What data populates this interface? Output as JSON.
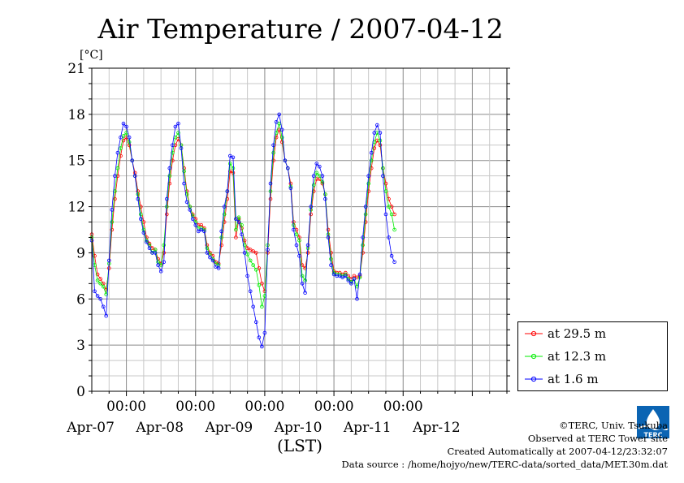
{
  "chart_data": {
    "type": "line",
    "title": "Air Temperature / 2007-04-12",
    "unit_label": "[°C]",
    "xlabel": "(LST)",
    "ylim": [
      0,
      21
    ],
    "yticks": [
      0,
      3,
      6,
      9,
      12,
      15,
      18,
      21
    ],
    "x_range_hours": [
      -12,
      132
    ],
    "x_units": "hours since 2007-04-07 00:00 LST",
    "x_tick_top_label": "00:00",
    "x_day_labels": [
      "Apr-07",
      "Apr-08",
      "Apr-09",
      "Apr-10",
      "Apr-11"
    ],
    "x_day_label_extra": "Apr-12",
    "grid": true,
    "legend_position": "right",
    "series": [
      {
        "name": "at 29.5 m",
        "color": "#ff0000",
        "points": [
          [
            -12,
            10.2
          ],
          [
            -11,
            8.8
          ],
          [
            -10,
            7.6
          ],
          [
            -9,
            7.3
          ],
          [
            -8,
            7.0
          ],
          [
            -7,
            6.6
          ],
          [
            -6,
            8.0
          ],
          [
            -5,
            10.5
          ],
          [
            -4,
            12.5
          ],
          [
            -3,
            14.0
          ],
          [
            -2,
            15.3
          ],
          [
            -1,
            16.3
          ],
          [
            0,
            16.5
          ],
          [
            1,
            16.0
          ],
          [
            2,
            15.0
          ],
          [
            3,
            14.2
          ],
          [
            4,
            13.0
          ],
          [
            5,
            12.0
          ],
          [
            6,
            11.0
          ],
          [
            7,
            10.0
          ],
          [
            8,
            9.6
          ],
          [
            9,
            9.3
          ],
          [
            10,
            9.2
          ],
          [
            11,
            8.6
          ],
          [
            12,
            8.3
          ],
          [
            13,
            9.0
          ],
          [
            14,
            11.5
          ],
          [
            15,
            13.5
          ],
          [
            16,
            15.0
          ],
          [
            17,
            16.0
          ],
          [
            18,
            16.4
          ],
          [
            19,
            16.0
          ],
          [
            20,
            14.5
          ],
          [
            21,
            13.0
          ],
          [
            22,
            12.0
          ],
          [
            23,
            11.5
          ],
          [
            24,
            11.2
          ],
          [
            25,
            10.8
          ],
          [
            26,
            10.8
          ],
          [
            27,
            10.6
          ],
          [
            28,
            9.5
          ],
          [
            29,
            9.0
          ],
          [
            30,
            8.8
          ],
          [
            31,
            8.4
          ],
          [
            32,
            8.3
          ],
          [
            33,
            9.5
          ],
          [
            34,
            11.0
          ],
          [
            35,
            12.5
          ],
          [
            36,
            14.3
          ],
          [
            37,
            14.2
          ],
          [
            38,
            10.0
          ],
          [
            39,
            11.2
          ],
          [
            40,
            10.6
          ],
          [
            41,
            9.8
          ],
          [
            42,
            9.3
          ],
          [
            43,
            9.2
          ],
          [
            44,
            9.1
          ],
          [
            45,
            9.0
          ],
          [
            46,
            8.0
          ],
          [
            47,
            7.0
          ],
          [
            48,
            6.5
          ],
          [
            49,
            9.0
          ],
          [
            50,
            12.5
          ],
          [
            51,
            15.0
          ],
          [
            52,
            16.5
          ],
          [
            53,
            17.0
          ],
          [
            54,
            16.2
          ],
          [
            55,
            15.0
          ],
          [
            56,
            14.5
          ],
          [
            57,
            13.5
          ],
          [
            58,
            11.0
          ],
          [
            59,
            10.5
          ],
          [
            60,
            10.0
          ],
          [
            61,
            8.2
          ],
          [
            62,
            8.0
          ],
          [
            63,
            9.0
          ],
          [
            64,
            11.5
          ],
          [
            65,
            13.0
          ],
          [
            66,
            13.8
          ],
          [
            67,
            13.8
          ],
          [
            68,
            13.5
          ],
          [
            69,
            12.8
          ],
          [
            70,
            10.5
          ],
          [
            71,
            9.0
          ],
          [
            72,
            7.8
          ],
          [
            73,
            7.7
          ],
          [
            74,
            7.7
          ],
          [
            75,
            7.6
          ],
          [
            76,
            7.7
          ],
          [
            77,
            7.5
          ],
          [
            78,
            7.3
          ],
          [
            79,
            7.5
          ],
          [
            80,
            7.4
          ],
          [
            81,
            7.5
          ],
          [
            82,
            9.0
          ],
          [
            83,
            11.0
          ],
          [
            84,
            13.0
          ],
          [
            85,
            14.5
          ],
          [
            86,
            15.8
          ],
          [
            87,
            16.3
          ],
          [
            88,
            16.0
          ],
          [
            89,
            14.5
          ],
          [
            90,
            13.5
          ],
          [
            91,
            12.5
          ],
          [
            92,
            12.0
          ],
          [
            93,
            11.5
          ]
        ]
      },
      {
        "name": "at 12.3 m",
        "color": "#00ee00",
        "points": [
          [
            -12,
            10.0
          ],
          [
            -11,
            8.2
          ],
          [
            -10,
            7.2
          ],
          [
            -9,
            7.0
          ],
          [
            -8,
            6.8
          ],
          [
            -7,
            6.3
          ],
          [
            -6,
            8.3
          ],
          [
            -5,
            11.0
          ],
          [
            -4,
            13.0
          ],
          [
            -3,
            14.5
          ],
          [
            -2,
            15.8
          ],
          [
            -1,
            16.6
          ],
          [
            0,
            16.8
          ],
          [
            1,
            16.2
          ],
          [
            2,
            15.0
          ],
          [
            3,
            14.0
          ],
          [
            4,
            12.8
          ],
          [
            5,
            11.5
          ],
          [
            6,
            10.5
          ],
          [
            7,
            9.8
          ],
          [
            8,
            9.5
          ],
          [
            9,
            9.0
          ],
          [
            10,
            9.2
          ],
          [
            11,
            8.4
          ],
          [
            12,
            8.2
          ],
          [
            13,
            9.5
          ],
          [
            14,
            12.0
          ],
          [
            15,
            14.0
          ],
          [
            16,
            15.5
          ],
          [
            17,
            16.5
          ],
          [
            18,
            16.8
          ],
          [
            19,
            16.0
          ],
          [
            20,
            14.3
          ],
          [
            21,
            12.8
          ],
          [
            22,
            12.0
          ],
          [
            23,
            11.4
          ],
          [
            24,
            11.0
          ],
          [
            25,
            10.6
          ],
          [
            26,
            10.6
          ],
          [
            27,
            10.5
          ],
          [
            28,
            9.3
          ],
          [
            29,
            8.9
          ],
          [
            30,
            8.6
          ],
          [
            31,
            8.3
          ],
          [
            32,
            8.2
          ],
          [
            33,
            10.0
          ],
          [
            34,
            11.5
          ],
          [
            35,
            13.0
          ],
          [
            36,
            14.8
          ],
          [
            37,
            14.5
          ],
          [
            38,
            10.5
          ],
          [
            39,
            11.3
          ],
          [
            40,
            10.8
          ],
          [
            41,
            9.5
          ],
          [
            42,
            8.9
          ],
          [
            43,
            8.5
          ],
          [
            44,
            8.2
          ],
          [
            45,
            7.9
          ],
          [
            46,
            6.9
          ],
          [
            47,
            5.5
          ],
          [
            48,
            6.2
          ],
          [
            49,
            9.5
          ],
          [
            50,
            13.0
          ],
          [
            51,
            15.5
          ],
          [
            52,
            16.8
          ],
          [
            53,
            17.4
          ],
          [
            54,
            16.5
          ],
          [
            55,
            15.0
          ],
          [
            56,
            14.5
          ],
          [
            57,
            13.3
          ],
          [
            58,
            10.8
          ],
          [
            59,
            10.2
          ],
          [
            60,
            9.8
          ],
          [
            61,
            7.5
          ],
          [
            62,
            7.2
          ],
          [
            63,
            9.3
          ],
          [
            64,
            11.8
          ],
          [
            65,
            13.4
          ],
          [
            66,
            14.2
          ],
          [
            67,
            14.0
          ],
          [
            68,
            13.6
          ],
          [
            69,
            12.8
          ],
          [
            70,
            10.2
          ],
          [
            71,
            8.6
          ],
          [
            72,
            7.7
          ],
          [
            73,
            7.6
          ],
          [
            74,
            7.6
          ],
          [
            75,
            7.5
          ],
          [
            76,
            7.6
          ],
          [
            77,
            7.3
          ],
          [
            78,
            7.1
          ],
          [
            79,
            7.3
          ],
          [
            80,
            6.8
          ],
          [
            81,
            7.4
          ],
          [
            82,
            9.5
          ],
          [
            83,
            11.5
          ],
          [
            84,
            13.5
          ],
          [
            85,
            15.0
          ],
          [
            86,
            16.2
          ],
          [
            87,
            16.8
          ],
          [
            88,
            16.3
          ],
          [
            89,
            14.5
          ],
          [
            90,
            13.0
          ],
          [
            91,
            12.0
          ],
          [
            92,
            11.5
          ],
          [
            93,
            10.5
          ]
        ]
      },
      {
        "name": "at 1.6 m",
        "color": "#0000ff",
        "points": [
          [
            -12,
            9.8
          ],
          [
            -11,
            6.5
          ],
          [
            -10,
            6.2
          ],
          [
            -9,
            6.0
          ],
          [
            -8,
            5.5
          ],
          [
            -7,
            4.9
          ],
          [
            -6,
            8.5
          ],
          [
            -5,
            11.8
          ],
          [
            -4,
            14.0
          ],
          [
            -3,
            15.5
          ],
          [
            -2,
            16.5
          ],
          [
            -1,
            17.4
          ],
          [
            0,
            17.2
          ],
          [
            1,
            16.5
          ],
          [
            2,
            15.0
          ],
          [
            3,
            14.0
          ],
          [
            4,
            12.5
          ],
          [
            5,
            11.2
          ],
          [
            6,
            10.3
          ],
          [
            7,
            9.7
          ],
          [
            8,
            9.3
          ],
          [
            9,
            9.0
          ],
          [
            10,
            9.0
          ],
          [
            11,
            8.2
          ],
          [
            12,
            7.8
          ],
          [
            13,
            8.4
          ],
          [
            14,
            12.5
          ],
          [
            15,
            14.5
          ],
          [
            16,
            16.0
          ],
          [
            17,
            17.2
          ],
          [
            18,
            17.4
          ],
          [
            19,
            15.8
          ],
          [
            20,
            13.5
          ],
          [
            21,
            12.3
          ],
          [
            22,
            11.8
          ],
          [
            23,
            11.2
          ],
          [
            24,
            10.8
          ],
          [
            25,
            10.4
          ],
          [
            26,
            10.5
          ],
          [
            27,
            10.4
          ],
          [
            28,
            9.0
          ],
          [
            29,
            8.7
          ],
          [
            30,
            8.5
          ],
          [
            31,
            8.1
          ],
          [
            32,
            8.0
          ],
          [
            33,
            10.4
          ],
          [
            34,
            12.0
          ],
          [
            35,
            13.0
          ],
          [
            36,
            15.3
          ],
          [
            37,
            15.2
          ],
          [
            38,
            11.2
          ],
          [
            39,
            11.0
          ],
          [
            40,
            10.2
          ],
          [
            41,
            9.0
          ],
          [
            42,
            7.5
          ],
          [
            43,
            6.5
          ],
          [
            44,
            5.5
          ],
          [
            45,
            4.5
          ],
          [
            46,
            3.5
          ],
          [
            47,
            2.9
          ],
          [
            48,
            3.8
          ],
          [
            49,
            9.2
          ],
          [
            50,
            13.5
          ],
          [
            51,
            16.0
          ],
          [
            52,
            17.5
          ],
          [
            53,
            18.0
          ],
          [
            54,
            17.0
          ],
          [
            55,
            15.0
          ],
          [
            56,
            14.5
          ],
          [
            57,
            13.2
          ],
          [
            58,
            10.5
          ],
          [
            59,
            9.5
          ],
          [
            60,
            8.8
          ],
          [
            61,
            7.0
          ],
          [
            62,
            6.4
          ],
          [
            63,
            9.5
          ],
          [
            64,
            12.0
          ],
          [
            65,
            14.0
          ],
          [
            66,
            14.8
          ],
          [
            67,
            14.6
          ],
          [
            68,
            14.0
          ],
          [
            69,
            12.5
          ],
          [
            70,
            10.0
          ],
          [
            71,
            8.2
          ],
          [
            72,
            7.6
          ],
          [
            73,
            7.5
          ],
          [
            74,
            7.5
          ],
          [
            75,
            7.4
          ],
          [
            76,
            7.5
          ],
          [
            77,
            7.2
          ],
          [
            78,
            7.0
          ],
          [
            79,
            7.3
          ],
          [
            80,
            6.0
          ],
          [
            81,
            7.6
          ],
          [
            82,
            10.0
          ],
          [
            83,
            12.0
          ],
          [
            84,
            14.0
          ],
          [
            85,
            15.5
          ],
          [
            86,
            16.8
          ],
          [
            87,
            17.3
          ],
          [
            88,
            16.8
          ],
          [
            89,
            14.0
          ],
          [
            90,
            11.5
          ],
          [
            91,
            10.0
          ],
          [
            92,
            8.8
          ],
          [
            93,
            8.4
          ]
        ]
      }
    ]
  },
  "credits": {
    "line1": "©TERC, Univ. Tsukuba",
    "line2": "Observed at TERC Tower site",
    "line3": "Created Automatically at 2007-04-12/23:32:07",
    "line4": "Data source : /home/hojyo/new/TERC-data/sorted_data/MET.30m.dat"
  },
  "logo_text": "TERC"
}
